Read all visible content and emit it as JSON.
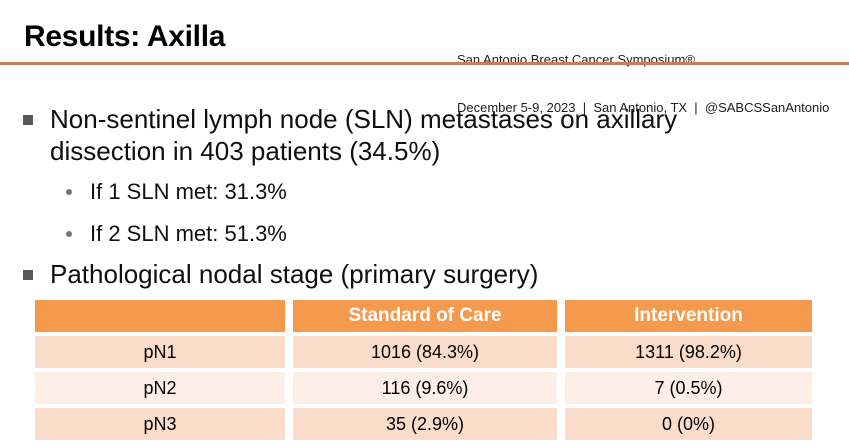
{
  "header": {
    "title": "Results: Axilla",
    "conference_line1": "San Antonio Breast Cancer Symposium®",
    "conference_line2": "December 5-9, 2023  |  San Antonio, TX  |  @SABCSSanAntonio"
  },
  "content": {
    "bullet1": {
      "lines": [
        "Non-sentinel lymph node (SLN) metastases on axillary",
        "dissection in 403 patients (34.5%)"
      ]
    },
    "sub_bullets": [
      "If 1 SLN met: 31.3%",
      "If 2 SLN met: 51.3%"
    ],
    "bullet2": "Pathological nodal stage (primary surgery)"
  },
  "table": {
    "headers": [
      "",
      "Standard of Care",
      "Intervention"
    ],
    "rows": [
      {
        "label": "pN1",
        "standard_of_care": "1016 (84.3%)",
        "intervention": "1311 (98.2%)"
      },
      {
        "label": "pN2",
        "standard_of_care": "116 (9.6%)",
        "intervention": "7 (0.5%)"
      },
      {
        "label": "pN3",
        "standard_of_care": "35 (2.9%)",
        "intervention": "0 (0%)"
      }
    ]
  },
  "colors": {
    "header_bg": "#F5994D",
    "row_odd_bg": "#FADCCB",
    "row_even_bg": "#FDEEE6",
    "divider": "#C87E5E",
    "bullet_marker": "#595959"
  }
}
